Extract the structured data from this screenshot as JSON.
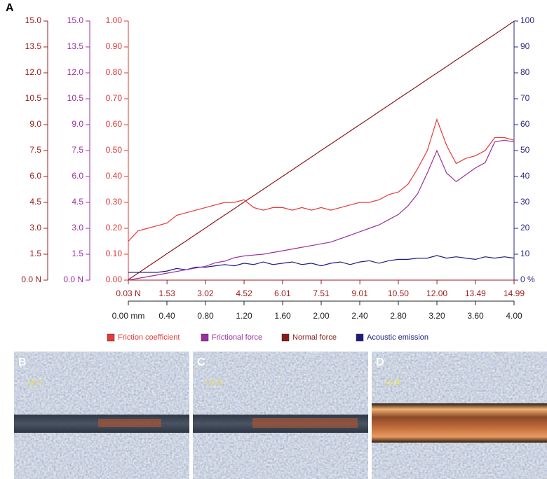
{
  "panel_label": "A",
  "chart_data": {
    "type": "line",
    "x": [
      0,
      0.1,
      0.2,
      0.3,
      0.4,
      0.5,
      0.6,
      0.7,
      0.8,
      0.9,
      1.0,
      1.1,
      1.2,
      1.3,
      1.4,
      1.5,
      1.6,
      1.7,
      1.8,
      1.9,
      2.0,
      2.1,
      2.2,
      2.3,
      2.4,
      2.5,
      2.6,
      2.7,
      2.8,
      2.9,
      3.0,
      3.1,
      3.2,
      3.3,
      3.4,
      3.5,
      3.6,
      3.7,
      3.8,
      3.9,
      4.0
    ],
    "xlim": [
      0,
      4
    ],
    "xticks": [
      {
        "value": 0,
        "label": "0.00 mm"
      },
      {
        "value": 0.4,
        "label": "0.40"
      },
      {
        "value": 0.8,
        "label": "0.80"
      },
      {
        "value": 1.2,
        "label": "1.20"
      },
      {
        "value": 1.6,
        "label": "1.60"
      },
      {
        "value": 2.0,
        "label": "2.00"
      },
      {
        "value": 2.4,
        "label": "2.40"
      },
      {
        "value": 2.8,
        "label": "2.80"
      },
      {
        "value": 3.2,
        "label": "3.20"
      },
      {
        "value": 3.6,
        "label": "3.60"
      },
      {
        "value": 4.0,
        "label": "4.00"
      }
    ],
    "x2lim": [
      0.03,
      14.99
    ],
    "x2ticks": [
      {
        "value": 0.03,
        "label": "0.03 N"
      },
      1.53,
      3.02,
      4.52,
      6.01,
      7.51,
      9.01,
      {
        "value": 10.5,
        "label": "10.50"
      },
      {
        "value": 12,
        "label": "12.00"
      },
      13.49,
      14.99
    ],
    "ylim": [
      0,
      1
    ],
    "yticks": [
      {
        "value": 0,
        "label": "0.00"
      },
      {
        "value": 0.1,
        "label": "0.10"
      },
      {
        "value": 0.2,
        "label": "0.20"
      },
      {
        "value": 0.3,
        "label": "0.30"
      },
      {
        "value": 0.4,
        "label": "0.40"
      },
      {
        "value": 0.5,
        "label": "0.50"
      },
      {
        "value": 0.6,
        "label": "0.60"
      },
      {
        "value": 0.7,
        "label": "0.70"
      },
      {
        "value": 0.8,
        "label": "0.80"
      },
      {
        "value": 0.9,
        "label": "0.90"
      },
      {
        "value": 1,
        "label": "1.00"
      }
    ],
    "y3lim": [
      0,
      15
    ],
    "y3ticks": [
      {
        "value": 0,
        "label": "0.0 N"
      },
      1.5,
      {
        "value": 3,
        "label": "3.0"
      },
      4.5,
      {
        "value": 6,
        "label": "6.0"
      },
      7.5,
      {
        "value": 9,
        "label": "9.0"
      },
      10.5,
      {
        "value": 12,
        "label": "12.0"
      },
      13.5,
      {
        "value": 15,
        "label": "15.0"
      }
    ],
    "y4lim": [
      0,
      15
    ],
    "y4ticks": [
      {
        "value": 0,
        "label": "0.0 N"
      },
      1.5,
      {
        "value": 3,
        "label": "3.0"
      },
      4.5,
      {
        "value": 6,
        "label": "6.0"
      },
      7.5,
      {
        "value": 9,
        "label": "9.0"
      },
      10.5,
      {
        "value": 12,
        "label": "12.0"
      },
      13.5,
      {
        "value": 15,
        "label": "15.0"
      }
    ],
    "y2lim": [
      0,
      100
    ],
    "y2ticks": [
      {
        "value": 0,
        "label": "0 %"
      },
      10,
      20,
      30,
      40,
      50,
      60,
      70,
      80,
      90,
      100
    ],
    "series": [
      {
        "name": "Friction coefficient",
        "color": "#e8393a",
        "axis": "y",
        "values": [
          0.15,
          0.19,
          0.2,
          0.21,
          0.22,
          0.25,
          0.26,
          0.27,
          0.28,
          0.29,
          0.3,
          0.3,
          0.31,
          0.28,
          0.27,
          0.28,
          0.28,
          0.27,
          0.28,
          0.27,
          0.28,
          0.27,
          0.28,
          0.29,
          0.3,
          0.3,
          0.31,
          0.33,
          0.34,
          0.37,
          0.43,
          0.5,
          0.62,
          0.52,
          0.45,
          0.47,
          0.48,
          0.5,
          0.55,
          0.55,
          0.54
        ]
      },
      {
        "name": "Frictional force",
        "color": "#9b2f9f",
        "axis": "y3",
        "values": [
          0,
          0.1,
          0.2,
          0.3,
          0.4,
          0.5,
          0.6,
          0.7,
          0.8,
          1.0,
          1.1,
          1.3,
          1.4,
          1.45,
          1.5,
          1.6,
          1.7,
          1.8,
          1.9,
          2.0,
          2.1,
          2.2,
          2.4,
          2.6,
          2.8,
          3.0,
          3.2,
          3.5,
          3.8,
          4.3,
          5.0,
          6.2,
          7.5,
          6.2,
          5.7,
          6.1,
          6.5,
          6.8,
          8.0,
          8.1,
          8.0
        ]
      },
      {
        "name": "Normal force",
        "color": "#8b1a1a",
        "axis": "y4",
        "values": [
          0.03,
          0.4,
          0.78,
          1.15,
          1.53,
          1.9,
          2.27,
          2.65,
          3.02,
          3.4,
          3.77,
          4.14,
          4.52,
          4.89,
          5.26,
          5.64,
          6.01,
          6.38,
          6.76,
          7.13,
          7.51,
          7.88,
          8.25,
          8.63,
          9.0,
          9.37,
          9.75,
          10.12,
          10.5,
          10.87,
          11.24,
          11.62,
          11.99,
          12.36,
          12.74,
          13.11,
          13.49,
          13.86,
          14.23,
          14.61,
          14.99
        ]
      },
      {
        "name": "Acoustic emission",
        "color": "#1c1c80",
        "axis": "y2",
        "values": [
          3,
          3,
          3,
          3,
          3.5,
          4.5,
          4,
          5,
          5,
          5.5,
          6,
          5.5,
          6.5,
          6,
          7,
          6,
          6.5,
          7,
          6,
          6.5,
          5.5,
          6.5,
          7,
          6,
          7,
          7.5,
          6.5,
          7.5,
          8,
          8,
          8.5,
          8.5,
          9.5,
          8.5,
          9,
          8.5,
          8,
          9,
          8.5,
          9,
          8.5
        ]
      }
    ],
    "axis_colors": {
      "y": "#e03535",
      "y3": "#a030a0",
      "y4": "#9b1c1c",
      "y2": "#2a2a80",
      "x": "#222222",
      "x2": "#9b1c1c"
    }
  },
  "panels": [
    {
      "label": "B",
      "caption": "Lc 1"
    },
    {
      "label": "C",
      "caption": "Lc 2"
    },
    {
      "label": "D",
      "caption": "Lc 3"
    }
  ]
}
